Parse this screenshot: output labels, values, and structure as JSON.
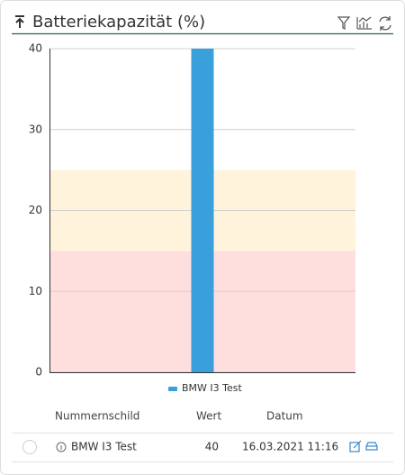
{
  "chart_data": {
    "type": "bar",
    "title": "Batteriekapazität (%)",
    "categories": [
      null
    ],
    "series": [
      {
        "name": "BMW I3 Test",
        "color": "#3aa0dc",
        "values": [
          40
        ]
      }
    ],
    "ylim": [
      0,
      40
    ],
    "yticks": [
      0,
      10,
      20,
      30,
      40
    ],
    "grid": true,
    "bands": [
      {
        "from": 0,
        "to": 15,
        "color": "#ffdede"
      },
      {
        "from": 15,
        "to": 25,
        "color": "#fff3dc"
      }
    ],
    "legend": "bottom"
  },
  "table": {
    "columns": [
      "Nummernschild",
      "Wert",
      "Datum"
    ],
    "rows": [
      [
        "BMW I3 Test",
        40,
        "16.03.2021 11:16"
      ]
    ]
  }
}
